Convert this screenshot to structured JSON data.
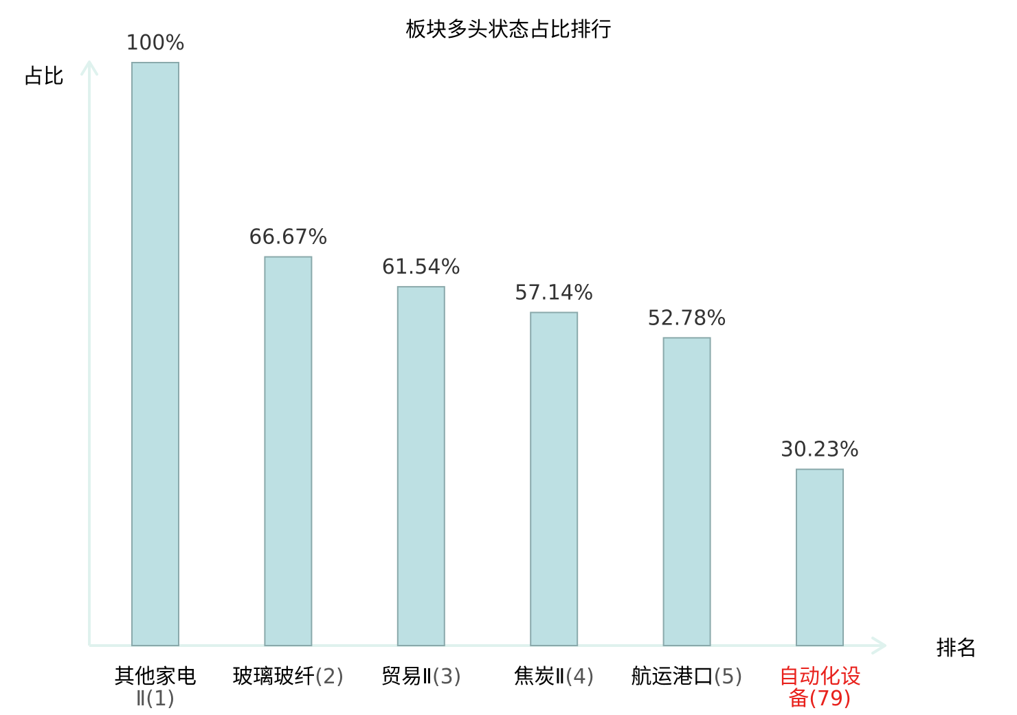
{
  "chart_data": {
    "type": "bar",
    "title": "板块多头状态占比排行",
    "ylabel": "占比",
    "xlabel": "排名",
    "ylim": [
      0,
      100
    ],
    "grid": false,
    "bar_color": "#bde0e3",
    "bar_edge_color": "#8aa9ab",
    "axis_color": "#dff2ee",
    "highlight_color": "#e8211c",
    "categories": [
      {
        "name": "其他家电",
        "name2": "Ⅱ(1)",
        "rank_text": "",
        "highlight": false
      },
      {
        "name": "玻璃玻纤",
        "name2": "",
        "rank_text": "(2)",
        "highlight": false
      },
      {
        "name": "贸易Ⅱ",
        "name2": "",
        "rank_text": "(3)",
        "highlight": false
      },
      {
        "name": "焦炭Ⅱ",
        "name2": "",
        "rank_text": "(4)",
        "highlight": false
      },
      {
        "name": "航运港口",
        "name2": "",
        "rank_text": "(5)",
        "highlight": false
      },
      {
        "name": "自动化设",
        "name2": "备(79)",
        "rank_text": "",
        "highlight": true
      }
    ],
    "values": [
      100,
      66.67,
      61.54,
      57.14,
      52.78,
      30.23
    ],
    "data_labels": [
      "100%",
      "66.67%",
      "61.54%",
      "57.14%",
      "52.78%",
      "30.23%"
    ]
  }
}
